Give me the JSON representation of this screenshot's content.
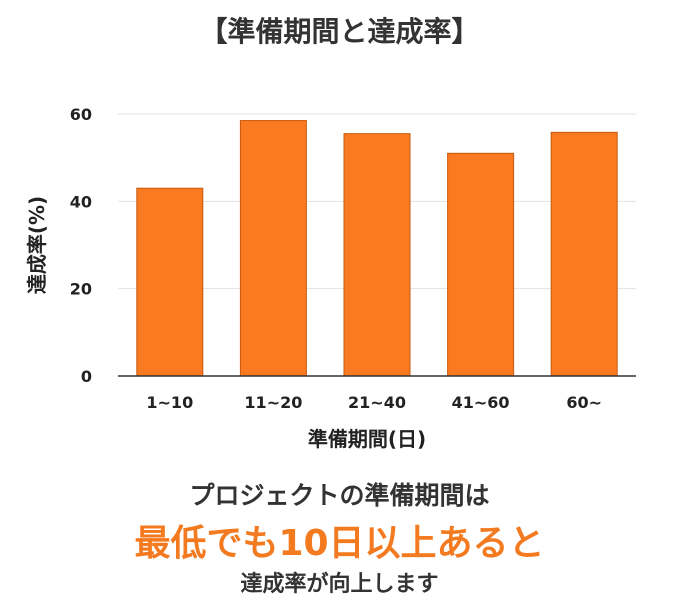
{
  "chart_data": {
    "type": "bar",
    "title": "【準備期間と達成率】",
    "categories": [
      "1~10",
      "11~20",
      "21~40",
      "41~60",
      "60~"
    ],
    "values": [
      43,
      58.5,
      55.5,
      51,
      55.8
    ],
    "xlabel": "準備期間(日)",
    "ylabel": "達成率(%)",
    "ylim": [
      0,
      60
    ],
    "yticks": [
      0,
      20,
      40,
      60
    ],
    "grid": true,
    "bar_color": "#fa7a21",
    "bar_stroke": "#c75a10"
  },
  "captions": {
    "line1": "プロジェクトの準備期間は",
    "line2": "最低でも10日以上あると",
    "line3": "達成率が向上します"
  },
  "colors": {
    "accent": "#f47a20",
    "text": "#333333"
  }
}
